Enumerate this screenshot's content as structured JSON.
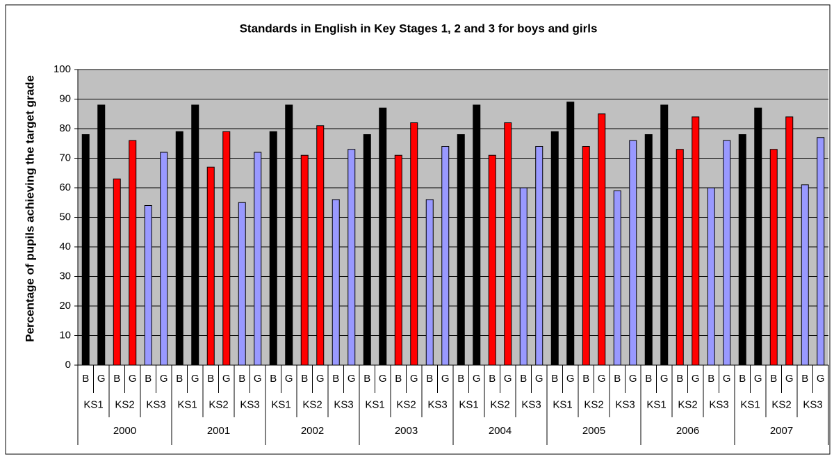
{
  "chart_data": {
    "type": "bar",
    "title": "Standards in English in Key Stages 1, 2 and 3 for boys and girls",
    "y_label": "Percentage of pupils achieving the target grade",
    "years": [
      "2000",
      "2001",
      "2002",
      "2003",
      "2004",
      "2005",
      "2006",
      "2007"
    ],
    "stages": [
      "KS1",
      "KS2",
      "KS3"
    ],
    "genders": [
      "B",
      "G"
    ],
    "stage_colors": [
      "#000000",
      "#ff0000",
      "#9999ff"
    ],
    "values": [
      78,
      88,
      63,
      76,
      54,
      72,
      79,
      88,
      67,
      79,
      55,
      72,
      79,
      88,
      71,
      81,
      56,
      73,
      78,
      87,
      71,
      82,
      56,
      74,
      78,
      88,
      71,
      82,
      60,
      74,
      79,
      89,
      74,
      85,
      59,
      76,
      78,
      88,
      73,
      84,
      60,
      76,
      78,
      87,
      73,
      84,
      61,
      77
    ],
    "ylim": [
      0,
      100
    ],
    "yticks": [
      0,
      10,
      20,
      30,
      40,
      50,
      60,
      70,
      80,
      90,
      100
    ],
    "grid": true,
    "plot_background": "#c0c0c0"
  }
}
